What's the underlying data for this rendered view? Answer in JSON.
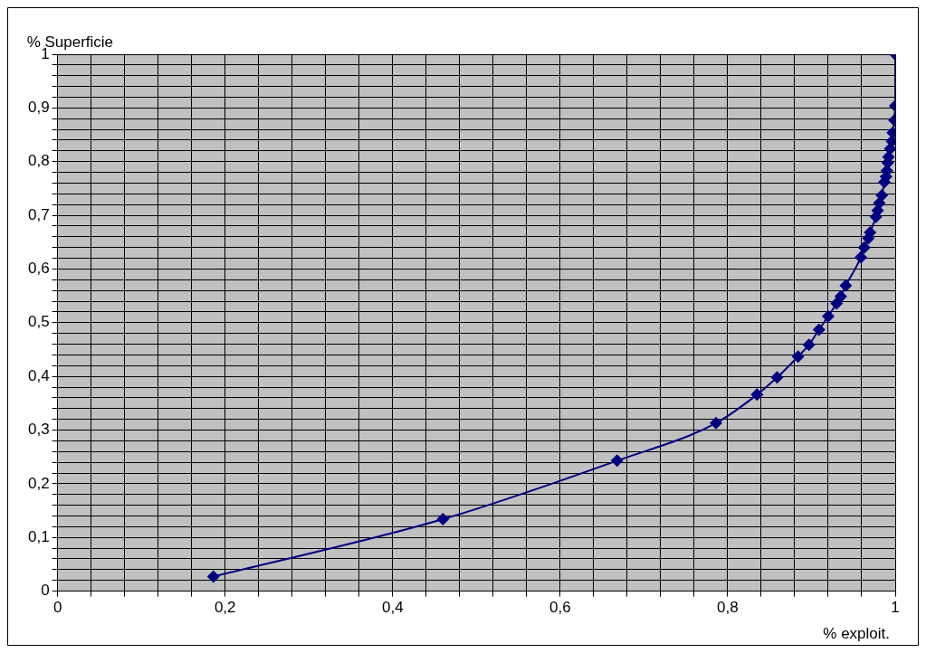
{
  "chart_data": {
    "type": "line",
    "xlabel": "% exploit.",
    "ylabel": "% Superficie",
    "color": "#000080",
    "marker": "diamond",
    "line_style": "solid",
    "grid": true,
    "legend": false,
    "x": [
      0.186,
      0.46,
      0.668,
      0.786,
      0.835,
      0.859,
      0.884,
      0.897,
      0.909,
      0.92,
      0.93,
      0.935,
      0.941,
      0.959,
      0.963,
      0.968,
      0.97,
      0.977,
      0.979,
      0.981,
      0.984,
      0.987,
      0.989,
      0.99,
      0.991,
      0.992,
      0.994,
      0.996,
      0.997,
      0.999,
      1,
      1
    ],
    "values": [
      0.027,
      0.134,
      0.243,
      0.313,
      0.366,
      0.398,
      0.437,
      0.459,
      0.487,
      0.512,
      0.536,
      0.549,
      0.569,
      0.622,
      0.64,
      0.657,
      0.668,
      0.697,
      0.709,
      0.723,
      0.737,
      0.762,
      0.772,
      0.783,
      0.798,
      0.809,
      0.824,
      0.838,
      0.854,
      0.877,
      0.904,
      1
    ],
    "xlim": [
      0,
      1
    ],
    "ylim": [
      0,
      1
    ],
    "xticks": [
      0,
      {
        "value": 0.04,
        "label": null
      },
      {
        "value": 0.08,
        "label": null
      },
      {
        "value": 0.12,
        "label": null
      },
      {
        "value": 0.16,
        "label": null
      },
      {
        "value": 0.2,
        "label": "0,2"
      },
      {
        "value": 0.24,
        "label": null
      },
      {
        "value": 0.28,
        "label": null
      },
      {
        "value": 0.32,
        "label": null
      },
      {
        "value": 0.36,
        "label": null
      },
      {
        "value": 0.4,
        "label": "0,4"
      },
      {
        "value": 0.44,
        "label": null
      },
      {
        "value": 0.48,
        "label": null
      },
      {
        "value": 0.52,
        "label": null
      },
      {
        "value": 0.56,
        "label": null
      },
      {
        "value": 0.6,
        "label": "0,6"
      },
      {
        "value": 0.64,
        "label": null
      },
      {
        "value": 0.68,
        "label": null
      },
      {
        "value": 0.72,
        "label": null
      },
      {
        "value": 0.76,
        "label": null
      },
      {
        "value": 0.8,
        "label": "0,8"
      },
      {
        "value": 0.84,
        "label": null
      },
      {
        "value": 0.88,
        "label": null
      },
      {
        "value": 0.92,
        "label": null
      },
      {
        "value": 0.96,
        "label": null
      },
      1
    ],
    "yticks": [
      0,
      {
        "value": 0.02,
        "label": null
      },
      {
        "value": 0.04,
        "label": null
      },
      {
        "value": 0.06,
        "label": null
      },
      {
        "value": 0.08,
        "label": null
      },
      {
        "value": 0.1,
        "label": "0,1"
      },
      {
        "value": 0.12,
        "label": null
      },
      {
        "value": 0.14,
        "label": null
      },
      {
        "value": 0.16,
        "label": null
      },
      {
        "value": 0.18,
        "label": null
      },
      {
        "value": 0.2,
        "label": "0,2"
      },
      {
        "value": 0.22,
        "label": null
      },
      {
        "value": 0.24,
        "label": null
      },
      {
        "value": 0.26,
        "label": null
      },
      {
        "value": 0.28,
        "label": null
      },
      {
        "value": 0.3,
        "label": "0,3"
      },
      {
        "value": 0.32,
        "label": null
      },
      {
        "value": 0.34,
        "label": null
      },
      {
        "value": 0.36,
        "label": null
      },
      {
        "value": 0.38,
        "label": null
      },
      {
        "value": 0.4,
        "label": "0,4"
      },
      {
        "value": 0.42,
        "label": null
      },
      {
        "value": 0.44,
        "label": null
      },
      {
        "value": 0.46,
        "label": null
      },
      {
        "value": 0.48,
        "label": null
      },
      {
        "value": 0.5,
        "label": "0,5"
      },
      {
        "value": 0.52,
        "label": null
      },
      {
        "value": 0.54,
        "label": null
      },
      {
        "value": 0.56,
        "label": null
      },
      {
        "value": 0.58,
        "label": null
      },
      {
        "value": 0.6,
        "label": "0,6"
      },
      {
        "value": 0.62,
        "label": null
      },
      {
        "value": 0.64,
        "label": null
      },
      {
        "value": 0.66,
        "label": null
      },
      {
        "value": 0.68,
        "label": null
      },
      {
        "value": 0.7,
        "label": "0,7"
      },
      {
        "value": 0.72,
        "label": null
      },
      {
        "value": 0.74,
        "label": null
      },
      {
        "value": 0.76,
        "label": null
      },
      {
        "value": 0.78,
        "label": null
      },
      {
        "value": 0.8,
        "label": "0,8"
      },
      {
        "value": 0.82,
        "label": null
      },
      {
        "value": 0.84,
        "label": null
      },
      {
        "value": 0.86,
        "label": null
      },
      {
        "value": 0.88,
        "label": null
      },
      {
        "value": 0.9,
        "label": "0,9"
      },
      {
        "value": 0.92,
        "label": null
      },
      {
        "value": 0.94,
        "label": null
      },
      {
        "value": 0.96,
        "label": null
      },
      {
        "value": 0.98,
        "label": null
      },
      1
    ]
  }
}
